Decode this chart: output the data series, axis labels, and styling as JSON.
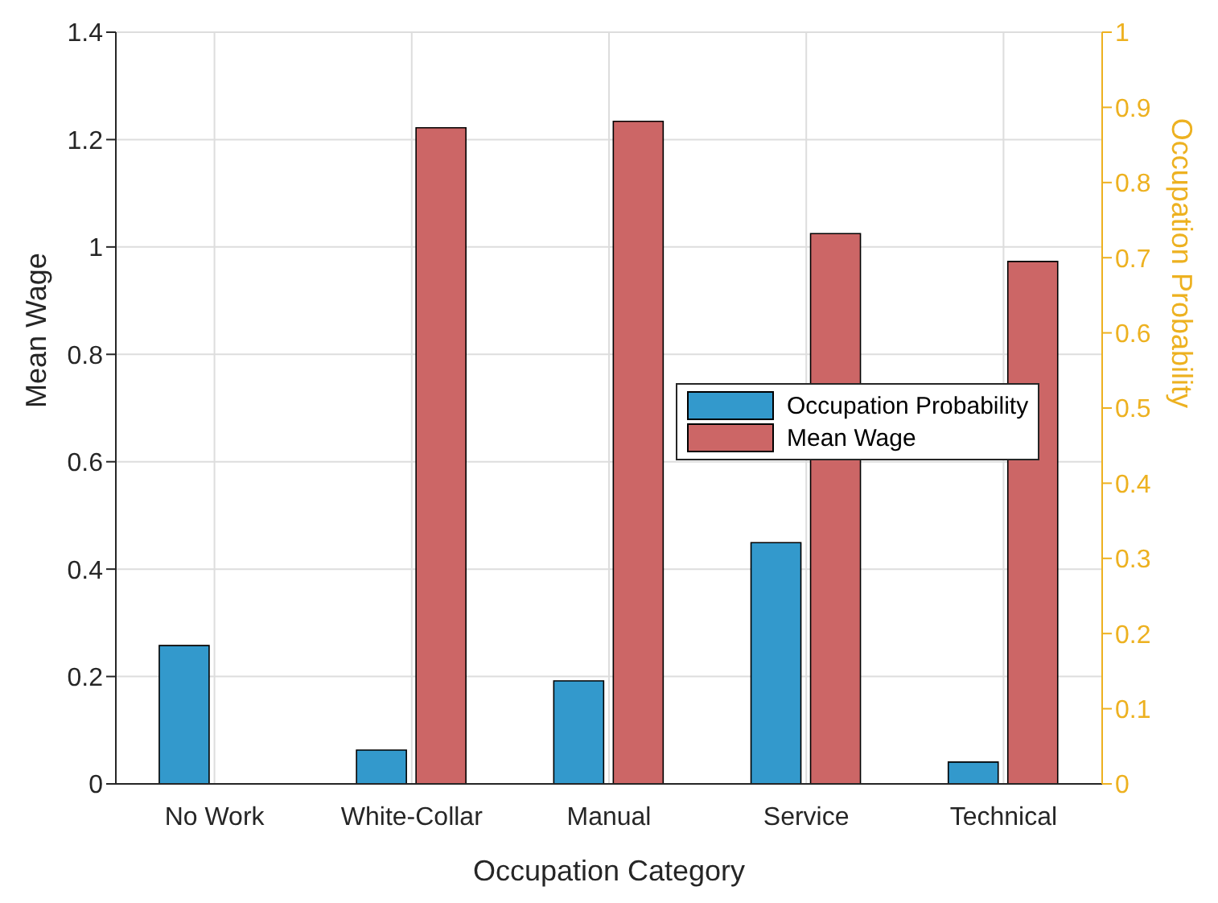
{
  "chart_data": {
    "type": "bar",
    "xlabel": "Occupation Category",
    "ylabel": "Mean Wage",
    "y2label": "Occupation Probability",
    "categories": [
      "No Work",
      "White-Collar",
      "Manual",
      "Service",
      "Technical"
    ],
    "series": [
      {
        "name": "Occupation Probability",
        "color": "#3399cc",
        "axis": "y2",
        "values": [
          0.184,
          0.045,
          0.137,
          0.321,
          0.029
        ]
      },
      {
        "name": "Mean Wage",
        "color": "#cc6666",
        "axis": "y",
        "values": [
          0,
          1.222,
          1.234,
          1.025,
          0.973
        ]
      }
    ],
    "ylim": [
      0,
      1.4
    ],
    "yticks": [
      0,
      0.2,
      0.4,
      0.6,
      0.8,
      1,
      1.2,
      1.4
    ],
    "y2lim": [
      0,
      1
    ],
    "y2ticks": [
      0,
      0.1,
      0.2,
      0.3,
      0.4,
      0.5,
      0.6,
      0.7,
      0.8,
      0.9,
      1
    ],
    "grid": true,
    "legend": "right"
  }
}
